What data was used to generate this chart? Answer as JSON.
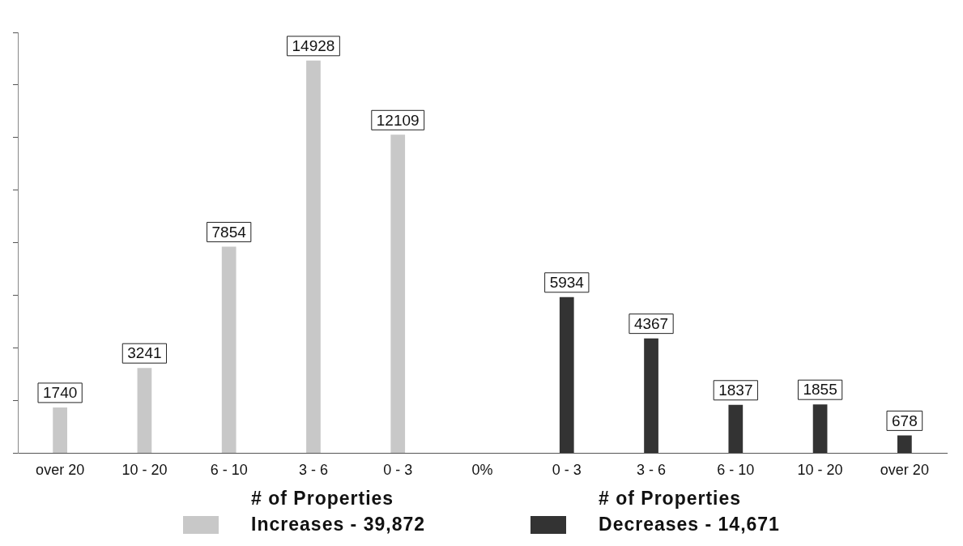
{
  "chart_data": {
    "type": "bar",
    "categories": [
      "over 20",
      "10 - 20",
      "6 - 10",
      "3 - 6",
      "0 - 3",
      "0%",
      "0 - 3",
      "3 - 6",
      "6 - 10",
      "10 - 20",
      "over 20"
    ],
    "series": [
      {
        "name": "# of Properties\nIncreases - 39,872",
        "color": "#c8c8c8",
        "values": [
          1740,
          3241,
          7854,
          14928,
          12109,
          null,
          null,
          null,
          null,
          null,
          null
        ]
      },
      {
        "name": "# of Properties\nDecreases - 14,671",
        "color": "#333333",
        "values": [
          null,
          null,
          null,
          null,
          null,
          null,
          5934,
          4367,
          1837,
          1855,
          678
        ]
      }
    ],
    "ylim": [
      0,
      16000
    ],
    "yticks": [
      {
        "value": 0,
        "label": null
      },
      {
        "value": 2000,
        "label": null
      },
      {
        "value": 4000,
        "label": null
      },
      {
        "value": 6000,
        "label": null
      },
      {
        "value": 8000,
        "label": null
      },
      {
        "value": 10000,
        "label": null
      },
      {
        "value": 12000,
        "label": null
      },
      {
        "value": 14000,
        "label": null
      },
      {
        "value": 16000,
        "label": null
      }
    ],
    "tick_labels": "x",
    "data_labels": true,
    "legend": "bottom",
    "grid": false
  }
}
